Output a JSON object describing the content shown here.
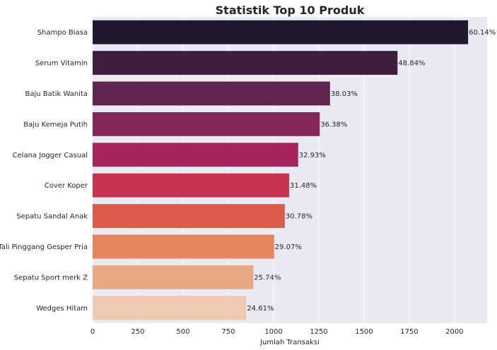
{
  "chart_data": {
    "type": "bar",
    "orientation": "horizontal",
    "title": "Statistik Top 10 Produk",
    "xlabel": "Jumlah Transaksi",
    "ylabel": "",
    "xlim": [
      0,
      2180
    ],
    "xticks": [
      0,
      250,
      500,
      750,
      1000,
      1250,
      1500,
      1750,
      2000
    ],
    "grid": true,
    "categories": [
      "Shampo Biasa",
      "Serum Vitamin",
      "Baju Batik Wanita",
      "Baju Kemeja Putih",
      "Celana Jogger Casual",
      "Cover Koper",
      "Sepatu Sandal Anak",
      "Tali Pinggang Gesper Pria",
      "Sepatu Sport merk Z",
      "Wedges Hitam"
    ],
    "values": [
      2075,
      1685,
      1312,
      1255,
      1136,
      1086,
      1062,
      1003,
      888,
      849
    ],
    "labels": [
      "60.14%",
      "48.84%",
      "38.03%",
      "36.38%",
      "32.93%",
      "31.48%",
      "30.78%",
      "29.07%",
      "25.74%",
      "24.61%"
    ],
    "colors": [
      "#22182e",
      "#3f1f40",
      "#5f2450",
      "#84275a",
      "#a6245c",
      "#c8344f",
      "#dc5a4a",
      "#e58560",
      "#eaa985",
      "#efc9b2"
    ]
  }
}
